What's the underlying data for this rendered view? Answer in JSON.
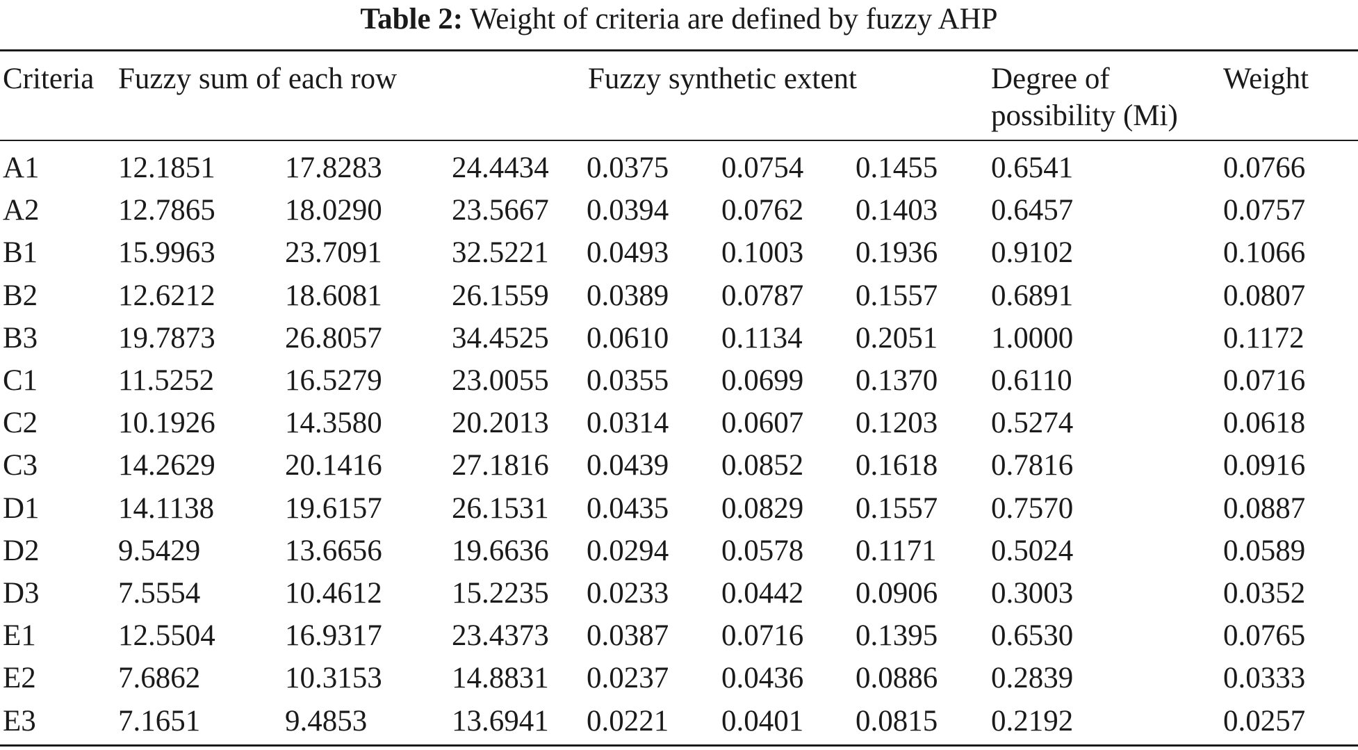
{
  "caption": {
    "label": "Table 2:",
    "text": "Weight of criteria are defined by fuzzy AHP"
  },
  "table": {
    "headers": {
      "criteria": "Criteria",
      "fuzzy_sum": "Fuzzy sum of each row",
      "fuzzy_synthetic": "Fuzzy synthetic extent",
      "degree_line1": "Degree of",
      "degree_line2": "possibility (Mi)",
      "weight": "Weight"
    },
    "rows": [
      [
        "A1",
        "12.1851",
        "17.8283",
        "24.4434",
        "0.0375",
        "0.0754",
        "0.1455",
        "0.6541",
        "0.0766"
      ],
      [
        "A2",
        "12.7865",
        "18.0290",
        "23.5667",
        "0.0394",
        "0.0762",
        "0.1403",
        "0.6457",
        "0.0757"
      ],
      [
        "B1",
        "15.9963",
        "23.7091",
        "32.5221",
        "0.0493",
        "0.1003",
        "0.1936",
        "0.9102",
        "0.1066"
      ],
      [
        "B2",
        "12.6212",
        "18.6081",
        "26.1559",
        "0.0389",
        "0.0787",
        "0.1557",
        "0.6891",
        "0.0807"
      ],
      [
        "B3",
        "19.7873",
        "26.8057",
        "34.4525",
        "0.0610",
        "0.1134",
        "0.2051",
        "1.0000",
        "0.1172"
      ],
      [
        "C1",
        "11.5252",
        "16.5279",
        "23.0055",
        "0.0355",
        "0.0699",
        "0.1370",
        "0.6110",
        "0.0716"
      ],
      [
        "C2",
        "10.1926",
        "14.3580",
        "20.2013",
        "0.0314",
        "0.0607",
        "0.1203",
        "0.5274",
        "0.0618"
      ],
      [
        "C3",
        "14.2629",
        "20.1416",
        "27.1816",
        "0.0439",
        "0.0852",
        "0.1618",
        "0.7816",
        "0.0916"
      ],
      [
        "D1",
        "14.1138",
        "19.6157",
        "26.1531",
        "0.0435",
        "0.0829",
        "0.1557",
        "0.7570",
        "0.0887"
      ],
      [
        "D2",
        "9.5429",
        "13.6656",
        "19.6636",
        "0.0294",
        "0.0578",
        "0.1171",
        "0.5024",
        "0.0589"
      ],
      [
        "D3",
        "7.5554",
        "10.4612",
        "15.2235",
        "0.0233",
        "0.0442",
        "0.0906",
        "0.3003",
        "0.0352"
      ],
      [
        "E1",
        "12.5504",
        "16.9317",
        "23.4373",
        "0.0387",
        "0.0716",
        "0.1395",
        "0.6530",
        "0.0765"
      ],
      [
        "E2",
        "7.6862",
        "10.3153",
        "14.8831",
        "0.0237",
        "0.0436",
        "0.0886",
        "0.2839",
        "0.0333"
      ],
      [
        "E3",
        "7.1651",
        "9.4853",
        "13.6941",
        "0.0221",
        "0.0401",
        "0.0815",
        "0.2192",
        "0.0257"
      ]
    ]
  }
}
